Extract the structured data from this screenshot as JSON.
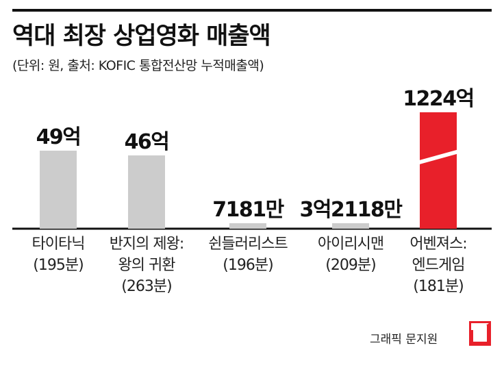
{
  "header": {
    "title": "역대 최장 상업영화 매출액",
    "subtitle": "(단위: 원, 출처: KOFIC 통합전산망 누적매출액)"
  },
  "credit": "그래픽 문지원",
  "colors": {
    "bar_gray": "#cccccc",
    "bar_highlight": "#e8202a",
    "text": "#111111"
  },
  "chart_data": {
    "type": "bar",
    "categories": [
      [
        "타이타닉",
        "(195분)"
      ],
      [
        "반지의 제왕:",
        "왕의 귀환",
        "(263분)"
      ],
      [
        "쉰들러리스트",
        "(196분)"
      ],
      [
        "아이리시맨",
        "(209분)"
      ],
      [
        "어벤져스:",
        "엔드게임",
        "(181분)"
      ]
    ],
    "values": [
      4900000000,
      4600000000,
      71810000,
      321180000,
      122400000000
    ],
    "value_labels": [
      "49억",
      "46억",
      "7181만",
      "3억2118만",
      "1224억"
    ],
    "highlight_index": 4,
    "axis_break": true,
    "title": "역대 최장 상업영화 매출액"
  }
}
